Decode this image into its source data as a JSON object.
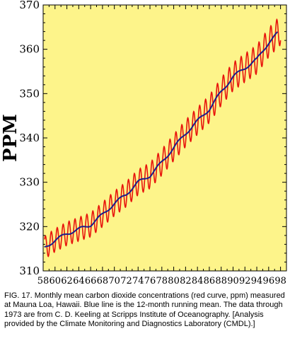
{
  "chart_data": {
    "type": "line",
    "title": "",
    "xlabel": "",
    "ylabel": "PPM",
    "xlim": [
      1958,
      1999
    ],
    "ylim": [
      310,
      370
    ],
    "y_ticks": [
      310,
      320,
      330,
      340,
      350,
      360,
      370
    ],
    "x_ticks": [
      1958,
      1960,
      1962,
      1964,
      1966,
      1968,
      1970,
      1972,
      1974,
      1976,
      1978,
      1980,
      1982,
      1984,
      1986,
      1988,
      1990,
      1992,
      1994,
      1996,
      1998
    ],
    "x_tick_labels": [
      "58",
      "60",
      "62",
      "64",
      "66",
      "68",
      "70",
      "72",
      "74",
      "76",
      "78",
      "80",
      "82",
      "84",
      "86",
      "88",
      "90",
      "92",
      "94",
      "96",
      "98"
    ],
    "grid": false,
    "background_color": "#fdf48a",
    "series": [
      {
        "description_key": "monthly-mean",
        "color": "#e8140c",
        "seasonal_amplitude": 3.0,
        "x": [
          1958.25,
          1998.0
        ]
      },
      {
        "description_key": "running-mean",
        "color": "#1b1f8c",
        "x": [
          1958.2,
          1960,
          1962,
          1964,
          1966,
          1968,
          1970,
          1972,
          1974,
          1976,
          1978,
          1980,
          1982,
          1984,
          1986,
          1988,
          1990,
          1992,
          1994,
          1996,
          1997.5
        ],
        "values": [
          315.2,
          316.9,
          318.4,
          319.4,
          320.4,
          322.7,
          325.2,
          327.3,
          330.0,
          331.5,
          334.5,
          337.8,
          341.0,
          343.8,
          346.5,
          350.4,
          353.8,
          355.8,
          357.7,
          361.5,
          363.6
        ]
      }
    ]
  },
  "caption": "FIG. 17. Monthly mean carbon dioxide concentrations (red curve, ppm) measured at Mauna Loa, Hawaii. Blue line is the 12-month running mean. The data through 1973 are from C. D. Keeling at Scripps Institute of Oceanography. [Analysis provided by the Climate Monitoring and Diagnostics Laboratory (CMDL).]"
}
